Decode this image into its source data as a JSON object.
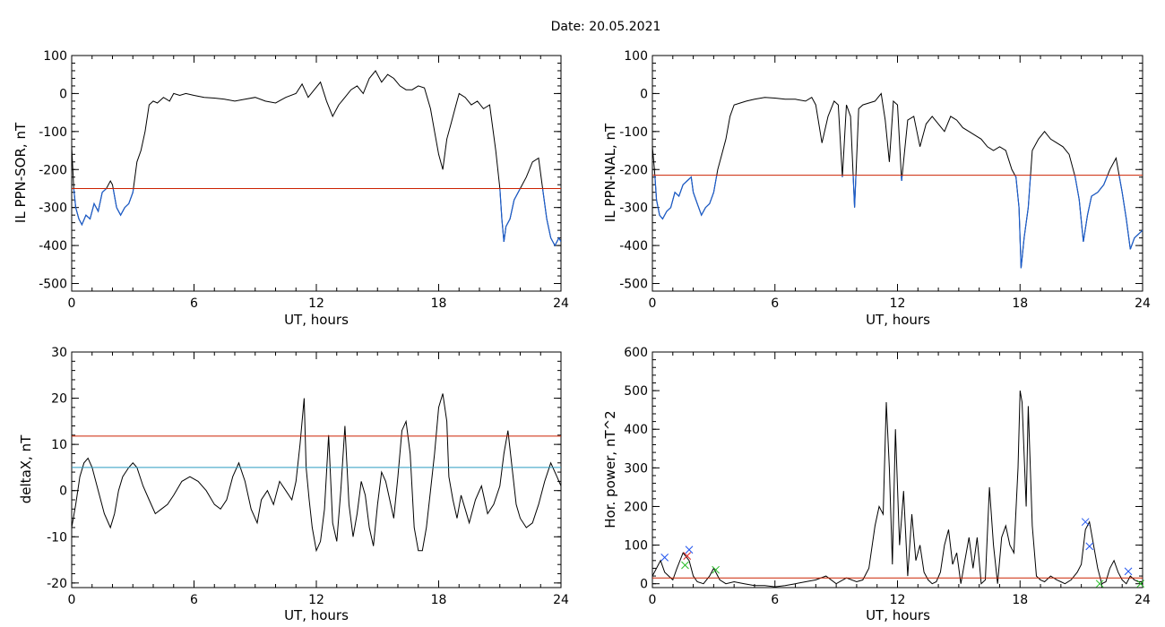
{
  "date_title": "Date:  20.05.2021",
  "colors": {
    "trace": "#000000",
    "highlight": "#1a5ccc",
    "threshold_red": "#cc2200",
    "threshold_cyan": "#2a9bc0",
    "marker_blue": "#2255ee",
    "marker_red": "#dd2222",
    "marker_green": "#22bb22"
  },
  "chart_data": [
    {
      "id": "sor",
      "type": "line",
      "xlabel": "UT, hours",
      "ylabel": "IL PPN-SOR, nT",
      "xlim": [
        0,
        24
      ],
      "ylim": [
        -520,
        100
      ],
      "xticks": [
        0,
        6,
        12,
        18,
        24
      ],
      "yticks": [
        -500,
        -400,
        -300,
        -200,
        -100,
        0,
        100
      ],
      "threshold": {
        "value": -250,
        "color": "threshold_red"
      },
      "highlight_below_threshold": true,
      "series": [
        {
          "x": [
            0.0,
            0.1,
            0.2,
            0.35,
            0.5,
            0.7,
            0.9,
            1.1,
            1.3,
            1.5,
            1.7,
            1.9,
            2.0,
            2.2,
            2.4,
            2.6,
            2.8,
            3.0,
            3.2,
            3.4,
            3.6,
            3.8,
            4.0,
            4.2,
            4.5,
            4.8,
            5.0,
            5.3,
            5.6,
            6.0,
            6.5,
            7.0,
            7.5,
            8.0,
            8.5,
            9.0,
            9.5,
            10.0,
            10.5,
            11.0,
            11.3,
            11.6,
            11.9,
            12.2,
            12.5,
            12.8,
            13.1,
            13.4,
            13.7,
            14.0,
            14.3,
            14.6,
            14.9,
            15.2,
            15.5,
            15.8,
            16.1,
            16.4,
            16.7,
            17.0,
            17.3,
            17.6,
            17.8,
            18.0,
            18.2,
            18.4,
            18.6,
            18.8,
            19.0,
            19.3,
            19.6,
            19.9,
            20.2,
            20.5,
            20.8,
            21.0,
            21.1,
            21.2,
            21.3,
            21.5,
            21.7,
            22.0,
            22.3,
            22.6,
            22.9,
            23.1,
            23.3,
            23.5,
            23.7,
            23.9,
            24.0
          ],
          "y": [
            -140,
            -250,
            -300,
            -330,
            -345,
            -320,
            -330,
            -290,
            -310,
            -260,
            -250,
            -230,
            -240,
            -300,
            -320,
            -300,
            -290,
            -260,
            -180,
            -150,
            -100,
            -30,
            -20,
            -25,
            -10,
            -20,
            0,
            -5,
            0,
            -5,
            -10,
            -12,
            -15,
            -20,
            -15,
            -10,
            -20,
            -25,
            -10,
            0,
            25,
            -10,
            10,
            30,
            -20,
            -60,
            -30,
            -10,
            10,
            20,
            0,
            40,
            60,
            30,
            50,
            40,
            20,
            10,
            10,
            20,
            15,
            -40,
            -100,
            -160,
            -200,
            -120,
            -80,
            -40,
            0,
            -10,
            -30,
            -20,
            -40,
            -30,
            -150,
            -250,
            -330,
            -390,
            -350,
            -330,
            -280,
            -250,
            -220,
            -180,
            -170,
            -250,
            -330,
            -380,
            -400,
            -380,
            -390
          ]
        }
      ]
    },
    {
      "id": "nal",
      "type": "line",
      "xlabel": "UT, hours",
      "ylabel": "IL PPN-NAL, nT",
      "xlim": [
        0,
        24
      ],
      "ylim": [
        -520,
        100
      ],
      "xticks": [
        0,
        6,
        12,
        18,
        24
      ],
      "yticks": [
        -500,
        -400,
        -300,
        -200,
        -100,
        0,
        100
      ],
      "threshold": {
        "value": -215,
        "color": "threshold_red"
      },
      "highlight_below_threshold": true,
      "series": [
        {
          "x": [
            0.0,
            0.1,
            0.2,
            0.35,
            0.5,
            0.7,
            0.9,
            1.1,
            1.3,
            1.5,
            1.7,
            1.9,
            2.0,
            2.2,
            2.4,
            2.6,
            2.8,
            3.0,
            3.2,
            3.4,
            3.6,
            3.8,
            4.0,
            4.3,
            4.6,
            5.0,
            5.5,
            6.0,
            6.5,
            7.0,
            7.5,
            7.8,
            8.0,
            8.3,
            8.6,
            8.9,
            9.1,
            9.3,
            9.5,
            9.7,
            9.9,
            10.1,
            10.3,
            10.6,
            10.9,
            11.2,
            11.4,
            11.6,
            11.8,
            12.0,
            12.2,
            12.5,
            12.8,
            13.1,
            13.4,
            13.7,
            14.0,
            14.3,
            14.6,
            14.9,
            15.2,
            15.5,
            15.8,
            16.1,
            16.4,
            16.7,
            17.0,
            17.3,
            17.6,
            17.8,
            17.95,
            18.05,
            18.2,
            18.4,
            18.6,
            18.9,
            19.2,
            19.5,
            19.8,
            20.1,
            20.4,
            20.7,
            20.9,
            21.1,
            21.3,
            21.5,
            21.8,
            22.1,
            22.4,
            22.7,
            23.0,
            23.2,
            23.4,
            23.6,
            23.8,
            24.0
          ],
          "y": [
            -140,
            -200,
            -280,
            -320,
            -330,
            -310,
            -300,
            -260,
            -270,
            -240,
            -230,
            -220,
            -260,
            -290,
            -320,
            -300,
            -290,
            -260,
            -200,
            -160,
            -120,
            -60,
            -30,
            -25,
            -20,
            -15,
            -10,
            -12,
            -15,
            -15,
            -20,
            -10,
            -30,
            -130,
            -60,
            -20,
            -30,
            -220,
            -30,
            -60,
            -300,
            -40,
            -30,
            -25,
            -20,
            0,
            -70,
            -180,
            -20,
            -30,
            -230,
            -70,
            -60,
            -140,
            -80,
            -60,
            -80,
            -100,
            -60,
            -70,
            -90,
            -100,
            -110,
            -120,
            -140,
            -150,
            -140,
            -150,
            -200,
            -220,
            -300,
            -460,
            -380,
            -300,
            -150,
            -120,
            -100,
            -120,
            -130,
            -140,
            -160,
            -220,
            -280,
            -390,
            -320,
            -270,
            -260,
            -240,
            -200,
            -170,
            -260,
            -330,
            -410,
            -380,
            -370,
            -360
          ]
        }
      ]
    },
    {
      "id": "deltax",
      "type": "line",
      "xlabel": "UT, hours",
      "ylabel": "deltaX, nT",
      "xlim": [
        0,
        24
      ],
      "ylim": [
        -21,
        30
      ],
      "xticks": [
        0,
        6,
        12,
        18,
        24
      ],
      "yticks": [
        -20,
        -10,
        0,
        10,
        20,
        30
      ],
      "thresholds": [
        {
          "value": 11.8,
          "color": "threshold_red"
        },
        {
          "value": 5.0,
          "color": "threshold_cyan"
        }
      ],
      "series": [
        {
          "x": [
            0.0,
            0.2,
            0.4,
            0.6,
            0.8,
            1.0,
            1.3,
            1.6,
            1.9,
            2.1,
            2.3,
            2.5,
            2.8,
            3.0,
            3.2,
            3.5,
            3.8,
            4.1,
            4.4,
            4.7,
            5.0,
            5.4,
            5.8,
            6.2,
            6.6,
            7.0,
            7.3,
            7.6,
            7.9,
            8.2,
            8.5,
            8.8,
            9.1,
            9.3,
            9.6,
            9.9,
            10.2,
            10.5,
            10.8,
            11.0,
            11.2,
            11.4,
            11.5,
            11.65,
            11.8,
            12.0,
            12.2,
            12.4,
            12.6,
            12.8,
            13.0,
            13.2,
            13.4,
            13.6,
            13.8,
            14.0,
            14.2,
            14.4,
            14.6,
            14.8,
            15.0,
            15.2,
            15.4,
            15.6,
            15.8,
            16.0,
            16.2,
            16.4,
            16.6,
            16.8,
            17.0,
            17.2,
            17.4,
            17.6,
            17.8,
            18.0,
            18.2,
            18.4,
            18.5,
            18.7,
            18.9,
            19.1,
            19.3,
            19.5,
            19.8,
            20.1,
            20.4,
            20.7,
            21.0,
            21.2,
            21.4,
            21.6,
            21.8,
            22.0,
            22.3,
            22.6,
            22.9,
            23.2,
            23.5,
            23.8,
            24.0
          ],
          "y": [
            -8,
            -3,
            3,
            6,
            7,
            5,
            0,
            -5,
            -8,
            -5,
            0,
            3,
            5,
            6,
            5,
            1,
            -2,
            -5,
            -4,
            -3,
            -1,
            2,
            3,
            2,
            0,
            -3,
            -4,
            -2,
            3,
            6,
            2,
            -4,
            -7,
            -2,
            0,
            -3,
            2,
            0,
            -2,
            2,
            10,
            20,
            5,
            -2,
            -8,
            -13,
            -11,
            -4,
            12,
            -7,
            -11,
            0,
            14,
            -3,
            -10,
            -5,
            2,
            -1,
            -8,
            -12,
            -3,
            4,
            2,
            -2,
            -6,
            3,
            13,
            15,
            8,
            -8,
            -13,
            -13,
            -8,
            0,
            8,
            18,
            21,
            15,
            3,
            -2,
            -6,
            -1,
            -4,
            -7,
            -2,
            1,
            -5,
            -3,
            1,
            8,
            13,
            5,
            -3,
            -6,
            -8,
            -7,
            -3,
            2,
            6,
            3,
            1
          ]
        }
      ]
    },
    {
      "id": "power",
      "type": "line",
      "xlabel": "UT, hours",
      "ylabel": "Hor. power, nT^2",
      "xlim": [
        0,
        24
      ],
      "ylim": [
        -10,
        600
      ],
      "xticks": [
        0,
        6,
        12,
        18,
        24
      ],
      "yticks": [
        0,
        100,
        200,
        300,
        400,
        500,
        600
      ],
      "threshold": {
        "value": 15,
        "color": "threshold_red"
      },
      "series": [
        {
          "x": [
            0.0,
            0.2,
            0.4,
            0.6,
            0.8,
            1.0,
            1.2,
            1.5,
            1.8,
            2.0,
            2.2,
            2.5,
            2.8,
            3.0,
            3.3,
            3.6,
            4.0,
            4.5,
            5.0,
            5.5,
            6.0,
            6.5,
            7.0,
            7.5,
            8.0,
            8.5,
            9.0,
            9.5,
            10.0,
            10.3,
            10.6,
            10.9,
            11.1,
            11.3,
            11.45,
            11.6,
            11.75,
            11.9,
            12.1,
            12.3,
            12.5,
            12.7,
            12.9,
            13.1,
            13.3,
            13.5,
            13.7,
            13.9,
            14.1,
            14.3,
            14.5,
            14.7,
            14.9,
            15.1,
            15.3,
            15.5,
            15.7,
            15.9,
            16.1,
            16.3,
            16.5,
            16.7,
            16.9,
            17.1,
            17.3,
            17.5,
            17.7,
            17.9,
            18.0,
            18.1,
            18.3,
            18.4,
            18.6,
            18.8,
            19.0,
            19.2,
            19.5,
            19.8,
            20.0,
            20.2,
            20.5,
            20.8,
            21.0,
            21.2,
            21.4,
            21.6,
            21.8,
            22.0,
            22.2,
            22.4,
            22.6,
            22.8,
            23.0,
            23.2,
            23.4,
            23.6,
            23.8,
            24.0
          ],
          "y": [
            20,
            40,
            60,
            30,
            20,
            10,
            40,
            80,
            60,
            20,
            5,
            0,
            20,
            40,
            10,
            0,
            5,
            0,
            -5,
            -5,
            -8,
            -5,
            0,
            5,
            10,
            20,
            0,
            15,
            5,
            10,
            40,
            150,
            200,
            180,
            470,
            300,
            50,
            400,
            100,
            240,
            20,
            180,
            60,
            100,
            30,
            10,
            0,
            5,
            30,
            100,
            140,
            50,
            80,
            0,
            60,
            120,
            40,
            120,
            0,
            10,
            250,
            100,
            0,
            120,
            150,
            100,
            80,
            300,
            500,
            470,
            200,
            460,
            150,
            20,
            10,
            5,
            20,
            10,
            5,
            0,
            10,
            30,
            50,
            140,
            160,
            100,
            40,
            0,
            5,
            40,
            60,
            30,
            10,
            0,
            20,
            10,
            5,
            5
          ]
        }
      ],
      "markers": [
        {
          "symbol": "x",
          "color": "marker_blue",
          "points": [
            [
              0.6,
              68
            ],
            [
              1.8,
              88
            ],
            [
              21.2,
              160
            ],
            [
              21.4,
              97
            ],
            [
              23.3,
              32
            ]
          ]
        },
        {
          "symbol": "x",
          "color": "marker_red",
          "points": [
            [
              1.7,
              72
            ]
          ]
        },
        {
          "symbol": "x",
          "color": "marker_green",
          "points": [
            [
              1.6,
              48
            ],
            [
              3.1,
              36
            ],
            [
              21.9,
              0
            ],
            [
              23.9,
              0
            ]
          ]
        }
      ]
    }
  ]
}
